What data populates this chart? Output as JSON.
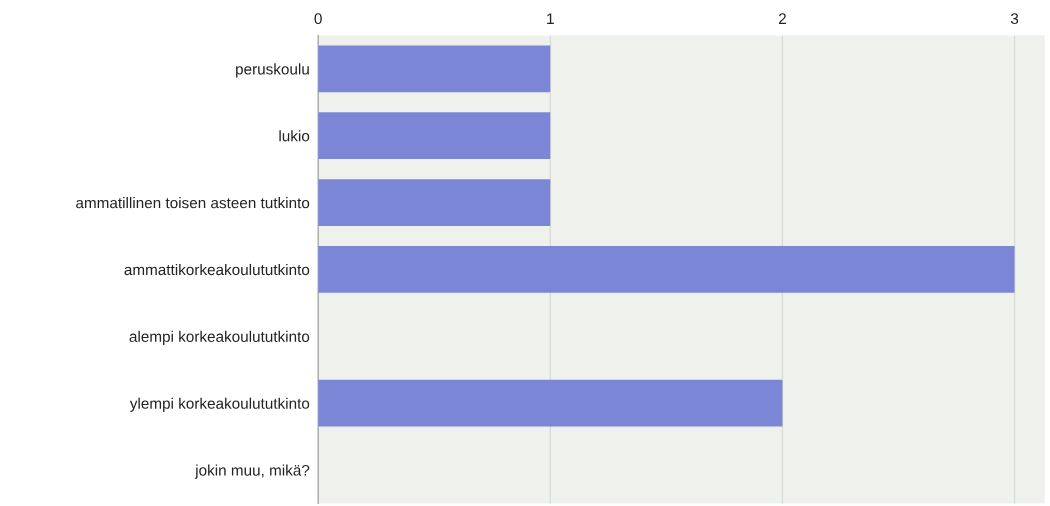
{
  "chart_data": {
    "type": "bar",
    "orientation": "horizontal",
    "categories": [
      "peruskoulu",
      "lukio",
      "ammatillinen toisen asteen tutkinto",
      "ammattikorkeakoulututkinto",
      "alempi korkeakoulututkinto",
      "ylempi korkeakoulututkinto",
      "jokin muu, mikä?"
    ],
    "values": [
      1,
      1,
      1,
      3,
      0,
      2,
      0
    ],
    "color": "#7b87d6",
    "xlim": [
      0,
      3.13
    ],
    "xticks": [
      0,
      1,
      2,
      3
    ],
    "grid": "x"
  }
}
